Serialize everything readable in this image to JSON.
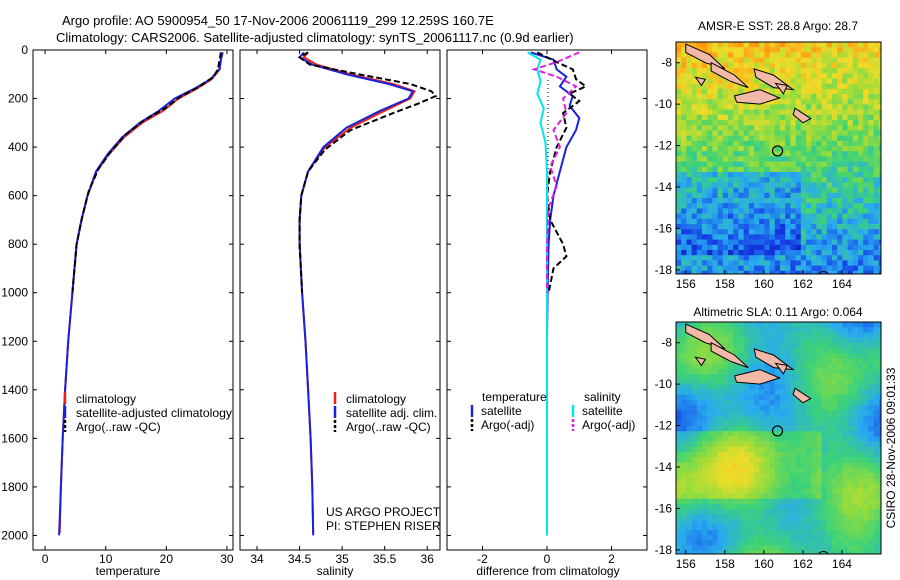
{
  "header": {
    "line1": "Argo profile: AO 5900954_50 17-Nov-2006 20061119_299 12.259S 160.7E",
    "line2": "Climatology: CARS2006. Satellite-adjusted climatology: synTS_20061117.nc (0.9d earlier)"
  },
  "side_stamp": "CSIRO 28-Nov-2006 09:01:33",
  "project": {
    "line1": "US ARGO PROJECT",
    "line2": "PI: STEPHEN RISER"
  },
  "colors": {
    "climatology": "#e8221c",
    "satellite": "#1a22d8",
    "argo": "#000000",
    "sat_salinity": "#00e5e5",
    "argo_salinity": "#e020d8",
    "map_coast": "#f2b8a8"
  },
  "chart_data": [
    {
      "id": "temperature-panel",
      "type": "line",
      "xlabel": "temperature",
      "xlim": [
        -2,
        31
      ],
      "ylim": [
        2060,
        0
      ],
      "xticks": [
        0,
        10,
        20,
        30
      ],
      "yticks": [
        0,
        200,
        400,
        600,
        800,
        1000,
        1200,
        1400,
        1600,
        1800,
        2000
      ],
      "legend": [
        "climatology",
        "satellite-adjusted climatology",
        "Argo(..raw -QC)"
      ],
      "series": [
        {
          "name": "climatology",
          "color": "#e8221c",
          "dash": "",
          "points": [
            [
              29.2,
              10
            ],
            [
              29.0,
              40
            ],
            [
              28.8,
              80
            ],
            [
              27.5,
              120
            ],
            [
              25,
              160
            ],
            [
              22,
              200
            ],
            [
              19.5,
              250
            ],
            [
              16,
              300
            ],
            [
              13,
              360
            ],
            [
              10.5,
              430
            ],
            [
              8.5,
              500
            ],
            [
              7,
              600
            ],
            [
              6,
              700
            ],
            [
              5.2,
              800
            ],
            [
              4.5,
              1000
            ],
            [
              3.8,
              1200
            ],
            [
              3.3,
              1400
            ],
            [
              2.9,
              1600
            ],
            [
              2.6,
              1800
            ],
            [
              2.4,
              1990
            ]
          ]
        },
        {
          "name": "satellite-adjusted climatology",
          "color": "#1a22d8",
          "dash": "",
          "points": [
            [
              29.3,
              10
            ],
            [
              29.0,
              40
            ],
            [
              28.7,
              80
            ],
            [
              27.3,
              120
            ],
            [
              24.6,
              160
            ],
            [
              21.4,
              200
            ],
            [
              18.8,
              250
            ],
            [
              15.6,
              300
            ],
            [
              12.7,
              360
            ],
            [
              10.3,
              430
            ],
            [
              8.4,
              500
            ],
            [
              7,
              600
            ],
            [
              6,
              700
            ],
            [
              5.2,
              800
            ],
            [
              4.5,
              1000
            ],
            [
              3.8,
              1200
            ],
            [
              3.3,
              1400
            ],
            [
              2.9,
              1600
            ],
            [
              2.6,
              1800
            ],
            [
              2.3,
              2000
            ]
          ]
        },
        {
          "name": "Argo(..raw -QC)",
          "color": "#000000",
          "dash": "6,3",
          "points": [
            [
              29.0,
              10
            ],
            [
              28.8,
              40
            ],
            [
              28.5,
              80
            ],
            [
              27.8,
              110
            ],
            [
              25.5,
              150
            ],
            [
              22.5,
              190
            ],
            [
              19.8,
              240
            ],
            [
              16.3,
              290
            ],
            [
              13.2,
              350
            ],
            [
              10.8,
              420
            ],
            [
              8.8,
              490
            ],
            [
              7.2,
              580
            ],
            [
              6.1,
              690
            ],
            [
              5.2,
              800
            ],
            [
              4.5,
              1000
            ]
          ]
        }
      ]
    },
    {
      "id": "salinity-panel",
      "type": "line",
      "xlabel": "salinity",
      "xlim": [
        33.8,
        36.15
      ],
      "ylim": [
        2060,
        0
      ],
      "xticks": [
        34,
        34.5,
        35,
        35.5,
        36
      ],
      "legend": [
        "climatology",
        "satellite adj. clim.",
        "Argo(..raw -QC)"
      ],
      "series": [
        {
          "name": "climatology",
          "color": "#e8221c",
          "dash": "",
          "points": [
            [
              34.6,
              10
            ],
            [
              34.55,
              30
            ],
            [
              34.7,
              60
            ],
            [
              35.1,
              100
            ],
            [
              35.6,
              140
            ],
            [
              35.85,
              170
            ],
            [
              35.8,
              200
            ],
            [
              35.5,
              250
            ],
            [
              35.1,
              320
            ],
            [
              34.8,
              400
            ],
            [
              34.6,
              500
            ],
            [
              34.52,
              600
            ],
            [
              34.5,
              700
            ],
            [
              34.5,
              800
            ],
            [
              34.53,
              1000
            ],
            [
              34.57,
              1200
            ],
            [
              34.6,
              1400
            ],
            [
              34.63,
              1600
            ],
            [
              34.65,
              1800
            ],
            [
              34.66,
              1990
            ]
          ]
        },
        {
          "name": "satellite adj. clim.",
          "color": "#1a22d8",
          "dash": "",
          "points": [
            [
              34.55,
              10
            ],
            [
              34.5,
              30
            ],
            [
              34.65,
              60
            ],
            [
              35.05,
              100
            ],
            [
              35.55,
              140
            ],
            [
              35.83,
              170
            ],
            [
              35.78,
              200
            ],
            [
              35.45,
              250
            ],
            [
              35.05,
              320
            ],
            [
              34.78,
              400
            ],
            [
              34.6,
              500
            ],
            [
              34.52,
              600
            ],
            [
              34.5,
              700
            ],
            [
              34.5,
              800
            ],
            [
              34.53,
              1000
            ],
            [
              34.57,
              1200
            ],
            [
              34.6,
              1400
            ],
            [
              34.63,
              1600
            ],
            [
              34.65,
              1800
            ],
            [
              34.66,
              2000
            ]
          ]
        },
        {
          "name": "Argo(..raw -QC)",
          "color": "#000000",
          "dash": "6,3",
          "points": [
            [
              34.6,
              10
            ],
            [
              34.5,
              30
            ],
            [
              34.62,
              60
            ],
            [
              35.2,
              100
            ],
            [
              35.8,
              140
            ],
            [
              36.05,
              170
            ],
            [
              36.1,
              190
            ],
            [
              35.9,
              220
            ],
            [
              35.6,
              260
            ],
            [
              35.1,
              330
            ],
            [
              34.8,
              410
            ],
            [
              34.6,
              500
            ],
            [
              34.52,
              600
            ],
            [
              34.5,
              700
            ],
            [
              34.5,
              800
            ],
            [
              34.53,
              1000
            ]
          ]
        }
      ]
    },
    {
      "id": "difference-panel",
      "type": "line",
      "xlabel": "difference from climatology",
      "xlim": [
        -3.1,
        3.1
      ],
      "ylim": [
        2060,
        0
      ],
      "xticks": [
        -2,
        0,
        2
      ],
      "legend_titles": [
        "temperature",
        "salinity"
      ],
      "legend": [
        "satellite",
        "Argo(-adj)",
        "satellite",
        "Argo(-adj)"
      ],
      "series": [
        {
          "name": "temperature satellite",
          "color": "#1a22d8",
          "dash": "",
          "points": [
            [
              -0.5,
              10
            ],
            [
              0.2,
              40
            ],
            [
              0.3,
              80
            ],
            [
              0.6,
              110
            ],
            [
              0.4,
              150
            ],
            [
              0.8,
              190
            ],
            [
              0.7,
              230
            ],
            [
              1.0,
              280
            ],
            [
              0.9,
              330
            ],
            [
              0.6,
              400
            ],
            [
              0.4,
              500
            ],
            [
              0.2,
              600
            ],
            [
              0.1,
              700
            ],
            [
              0.05,
              800
            ],
            [
              0.02,
              1000
            ],
            [
              0,
              1200
            ],
            [
              0,
              2000
            ]
          ]
        },
        {
          "name": "temperature Argo(-adj)",
          "color": "#000000",
          "dash": "6,3",
          "points": [
            [
              -0.3,
              10
            ],
            [
              0.3,
              50
            ],
            [
              0.8,
              80
            ],
            [
              0.9,
              120
            ],
            [
              1.2,
              150
            ],
            [
              0.7,
              180
            ],
            [
              1.0,
              210
            ],
            [
              0.5,
              260
            ],
            [
              0.6,
              320
            ],
            [
              0.3,
              400
            ],
            [
              0.1,
              500
            ],
            [
              0,
              600
            ],
            [
              0.1,
              700
            ],
            [
              0.5,
              800
            ],
            [
              0.6,
              850
            ],
            [
              0.2,
              900
            ],
            [
              0.05,
              1000
            ]
          ]
        },
        {
          "name": "salinity satellite",
          "color": "#00e5e5",
          "dash": "",
          "points": [
            [
              -0.6,
              10
            ],
            [
              -0.2,
              40
            ],
            [
              -0.3,
              80
            ],
            [
              -0.2,
              130
            ],
            [
              -0.3,
              180
            ],
            [
              -0.1,
              240
            ],
            [
              -0.2,
              300
            ],
            [
              -0.05,
              380
            ],
            [
              0,
              500
            ],
            [
              0,
              2000
            ]
          ]
        },
        {
          "name": "salinity Argo(-adj)",
          "color": "#e020d8",
          "dash": "6,3",
          "points": [
            [
              1.0,
              10
            ],
            [
              0.3,
              50
            ],
            [
              -0.4,
              80
            ],
            [
              0.3,
              110
            ],
            [
              0.9,
              150
            ],
            [
              0.5,
              200
            ],
            [
              0.6,
              260
            ],
            [
              0.2,
              330
            ],
            [
              0.4,
              400
            ],
            [
              0.1,
              480
            ],
            [
              0.3,
              560
            ],
            [
              0.05,
              650
            ],
            [
              0,
              800
            ],
            [
              0,
              1000
            ]
          ]
        }
      ]
    },
    {
      "id": "sst-map",
      "type": "heatmap",
      "title": "AMSR-E SST: 28.8 Argo: 28.7",
      "xticks": [
        156,
        158,
        160,
        162,
        164
      ],
      "yticks": [
        -8,
        -10,
        -12,
        -14,
        -16,
        -18
      ],
      "xlim": [
        155.5,
        166
      ],
      "ylim": [
        -18.2,
        -7
      ],
      "argo_position": [
        160.7,
        -12.259
      ]
    },
    {
      "id": "sla-map",
      "type": "heatmap",
      "title": "Altimetric SLA: 0.11 Argo: 0.064",
      "xticks": [
        156,
        158,
        160,
        162,
        164
      ],
      "yticks": [
        -8,
        -10,
        -12,
        -14,
        -16,
        -18
      ],
      "xlim": [
        155.5,
        166
      ],
      "ylim": [
        -18.2,
        -7
      ],
      "argo_position": [
        160.7,
        -12.259
      ]
    }
  ]
}
